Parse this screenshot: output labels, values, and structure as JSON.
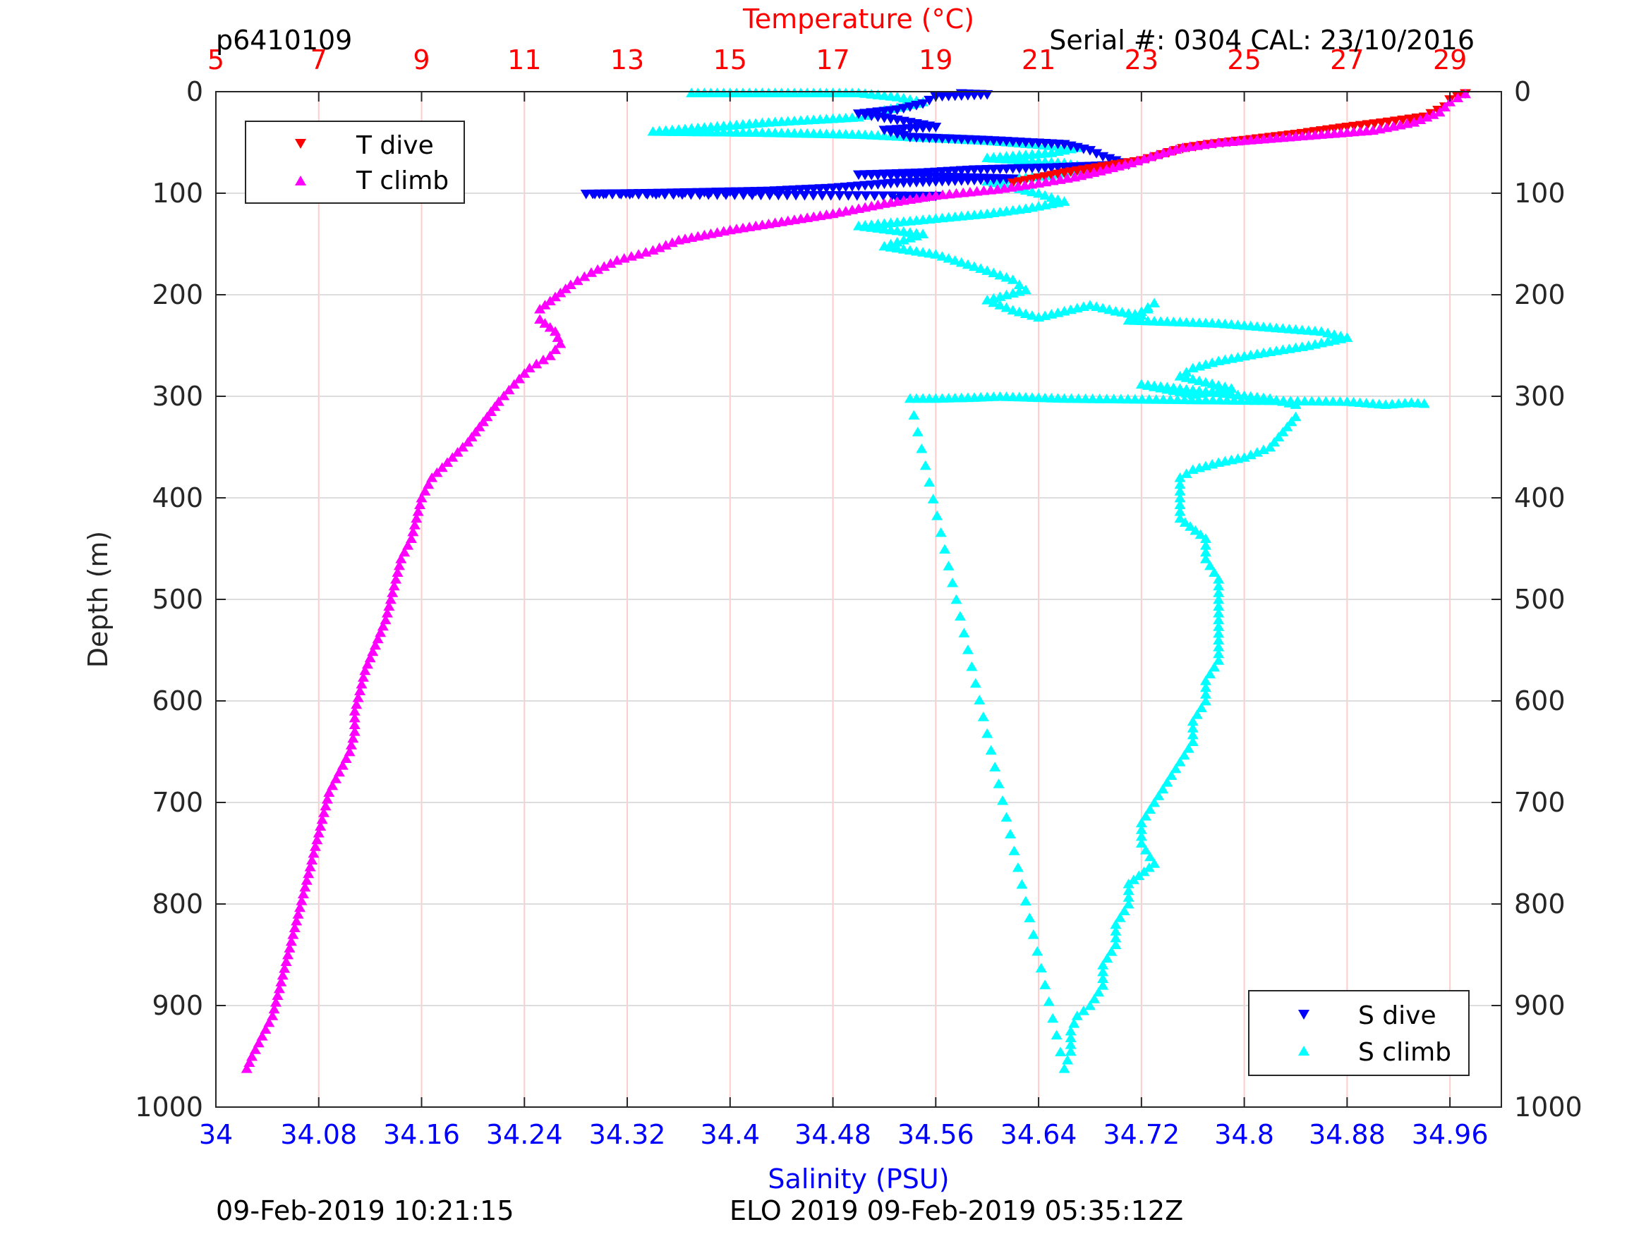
{
  "header": {
    "profile_id": "p6410109",
    "serial_info": "Serial #: 0304  CAL: 23/10/2016"
  },
  "footer": {
    "left_timestamp": "09-Feb-2019 10:21:15",
    "right_info": "ELO 2019 09-Feb-2019 05:35:12Z"
  },
  "colors": {
    "t_dive": "#ff0000",
    "t_climb": "#ff00ff",
    "s_dive": "#0000ff",
    "s_climb": "#00ffff",
    "temperature_axis": "#ff0000",
    "salinity_axis": "#0000ff",
    "grid_temperature": "#ffcccc",
    "grid_depth": "#dddddd"
  },
  "chart_data": {
    "type": "scatter",
    "ylabel": "Depth (m)",
    "y_direction": "reversed",
    "ylim": [
      0,
      1000
    ],
    "yticks": [
      0,
      100,
      200,
      300,
      400,
      500,
      600,
      700,
      800,
      900,
      1000
    ],
    "x_top": {
      "label": "Temperature (°C)",
      "range": [
        5,
        30
      ],
      "ticks": [
        5,
        7,
        9,
        11,
        13,
        15,
        17,
        19,
        21,
        23,
        25,
        27,
        29
      ]
    },
    "x_bottom": {
      "label": "Salinity (PSU)",
      "range": [
        34,
        35
      ],
      "ticks": [
        "34",
        "34.08",
        "34.16",
        "34.24",
        "34.32",
        "34.4",
        "34.48",
        "34.56",
        "34.64",
        "34.72",
        "34.8",
        "34.88",
        "34.96"
      ]
    },
    "legends": [
      {
        "position": "top-left",
        "entries": [
          {
            "label": "T dive",
            "marker": "triangle-down",
            "series": "t_dive"
          },
          {
            "label": "T climb",
            "marker": "triangle-up",
            "series": "t_climb"
          }
        ]
      },
      {
        "position": "bottom-right",
        "entries": [
          {
            "label": "S dive",
            "marker": "triangle-down",
            "series": "s_dive"
          },
          {
            "label": "S climb",
            "marker": "triangle-up",
            "series": "s_climb"
          }
        ]
      }
    ],
    "series": [
      {
        "name": "T dive",
        "axis": "temperature",
        "marker": "triangle-down",
        "points": [
          [
            29.3,
            2
          ],
          [
            29.0,
            8
          ],
          [
            28.9,
            15
          ],
          [
            28.5,
            25
          ],
          [
            27.8,
            30
          ],
          [
            27.0,
            35
          ],
          [
            26.0,
            42
          ],
          [
            25.0,
            48
          ],
          [
            24.3,
            52
          ],
          [
            23.8,
            56
          ],
          [
            23.4,
            62
          ],
          [
            23.0,
            68
          ],
          [
            22.5,
            72
          ],
          [
            22.0,
            76
          ],
          [
            21.5,
            80
          ],
          [
            21.0,
            85
          ],
          [
            20.5,
            90
          ]
        ]
      },
      {
        "name": "T climb",
        "axis": "temperature",
        "marker": "triangle-up",
        "points": [
          [
            29.3,
            2
          ],
          [
            29.0,
            10
          ],
          [
            28.8,
            20
          ],
          [
            28.3,
            30
          ],
          [
            27.5,
            38
          ],
          [
            26.5,
            42
          ],
          [
            25.5,
            46
          ],
          [
            24.5,
            50
          ],
          [
            23.8,
            55
          ],
          [
            23.3,
            62
          ],
          [
            22.8,
            70
          ],
          [
            22.2,
            78
          ],
          [
            21.7,
            84
          ],
          [
            21.0,
            90
          ],
          [
            20.2,
            96
          ],
          [
            19.0,
            102
          ],
          [
            18.0,
            110
          ],
          [
            17.0,
            120
          ],
          [
            16.0,
            128
          ],
          [
            15.0,
            136
          ],
          [
            14.0,
            146
          ],
          [
            13.5,
            156
          ],
          [
            12.8,
            166
          ],
          [
            12.3,
            178
          ],
          [
            11.9,
            190
          ],
          [
            11.6,
            202
          ],
          [
            11.3,
            214
          ],
          [
            11.3,
            224
          ],
          [
            11.6,
            236
          ],
          [
            11.7,
            248
          ],
          [
            11.5,
            260
          ],
          [
            11.1,
            272
          ],
          [
            10.8,
            288
          ],
          [
            10.5,
            305
          ],
          [
            10.2,
            325
          ],
          [
            9.9,
            345
          ],
          [
            9.5,
            365
          ],
          [
            9.2,
            380
          ],
          [
            9.0,
            400
          ],
          [
            8.9,
            420
          ],
          [
            8.8,
            440
          ],
          [
            8.6,
            460
          ],
          [
            8.5,
            480
          ],
          [
            8.4,
            500
          ],
          [
            8.3,
            520
          ],
          [
            8.1,
            545
          ],
          [
            7.9,
            570
          ],
          [
            7.8,
            590
          ],
          [
            7.7,
            610
          ],
          [
            7.7,
            630
          ],
          [
            7.6,
            650
          ],
          [
            7.4,
            670
          ],
          [
            7.2,
            690
          ],
          [
            7.1,
            710
          ],
          [
            7.0,
            730
          ],
          [
            6.9,
            750
          ],
          [
            6.8,
            770
          ],
          [
            6.7,
            790
          ],
          [
            6.6,
            810
          ],
          [
            6.5,
            830
          ],
          [
            6.4,
            850
          ],
          [
            6.3,
            870
          ],
          [
            6.2,
            890
          ],
          [
            6.1,
            910
          ],
          [
            5.9,
            930
          ],
          [
            5.7,
            950
          ],
          [
            5.6,
            962
          ]
        ]
      },
      {
        "name": "S dive",
        "axis": "salinity",
        "marker": "triangle-down",
        "points": [
          [
            34.58,
            2
          ],
          [
            34.6,
            3
          ],
          [
            34.56,
            5
          ],
          [
            34.55,
            12
          ],
          [
            34.53,
            18
          ],
          [
            34.5,
            22
          ],
          [
            34.53,
            28
          ],
          [
            34.56,
            35
          ],
          [
            34.52,
            38
          ],
          [
            34.54,
            45
          ],
          [
            34.6,
            48
          ],
          [
            34.66,
            52
          ],
          [
            34.68,
            58
          ],
          [
            34.69,
            64
          ],
          [
            34.7,
            68
          ],
          [
            34.71,
            72
          ],
          [
            34.65,
            75
          ],
          [
            34.59,
            77
          ],
          [
            34.55,
            80
          ],
          [
            34.5,
            82
          ],
          [
            34.62,
            86
          ],
          [
            34.53,
            90
          ],
          [
            34.48,
            95
          ],
          [
            34.43,
            98
          ],
          [
            34.35,
            100
          ],
          [
            34.288,
            101
          ],
          [
            34.56,
            103
          ],
          [
            34.53,
            106
          ]
        ]
      },
      {
        "name": "S climb",
        "axis": "salinity",
        "marker": "triangle-up",
        "points": [
          [
            34.37,
            1
          ],
          [
            34.46,
            1
          ],
          [
            34.5,
            1
          ],
          [
            34.53,
            5
          ],
          [
            34.55,
            10
          ],
          [
            34.52,
            18
          ],
          [
            34.5,
            25
          ],
          [
            34.43,
            30
          ],
          [
            34.35,
            38
          ],
          [
            34.34,
            39
          ],
          [
            34.42,
            40
          ],
          [
            34.5,
            42
          ],
          [
            34.6,
            48
          ],
          [
            34.67,
            55
          ],
          [
            34.65,
            60
          ],
          [
            34.6,
            65
          ],
          [
            34.66,
            70
          ],
          [
            34.68,
            75
          ],
          [
            34.65,
            82
          ],
          [
            34.6,
            88
          ],
          [
            34.62,
            94
          ],
          [
            34.64,
            100
          ],
          [
            34.66,
            108
          ],
          [
            34.63,
            115
          ],
          [
            34.6,
            120
          ],
          [
            34.55,
            126
          ],
          [
            34.5,
            132
          ],
          [
            34.55,
            140
          ],
          [
            34.52,
            152
          ],
          [
            34.56,
            160
          ],
          [
            34.58,
            168
          ],
          [
            34.6,
            176
          ],
          [
            34.62,
            185
          ],
          [
            34.63,
            195
          ],
          [
            34.6,
            205
          ],
          [
            34.62,
            215
          ],
          [
            34.64,
            222
          ],
          [
            34.68,
            210
          ],
          [
            34.7,
            216
          ],
          [
            34.72,
            220
          ],
          [
            34.73,
            208
          ],
          [
            34.71,
            225
          ],
          [
            34.78,
            228
          ],
          [
            34.82,
            232
          ],
          [
            34.86,
            236
          ],
          [
            34.88,
            242
          ],
          [
            34.85,
            250
          ],
          [
            34.81,
            258
          ],
          [
            34.78,
            265
          ],
          [
            34.76,
            272
          ],
          [
            34.75,
            280
          ],
          [
            34.77,
            286
          ],
          [
            34.79,
            292
          ],
          [
            34.76,
            298
          ],
          [
            34.72,
            288
          ],
          [
            34.82,
            302
          ],
          [
            34.84,
            308
          ],
          [
            34.84,
            320
          ],
          [
            34.83,
            335
          ],
          [
            34.82,
            350
          ],
          [
            34.8,
            360
          ],
          [
            34.78,
            365
          ],
          [
            34.76,
            372
          ],
          [
            34.75,
            380
          ],
          [
            34.75,
            400
          ],
          [
            34.75,
            420
          ],
          [
            34.77,
            440
          ],
          [
            34.77,
            460
          ],
          [
            34.78,
            480
          ],
          [
            34.78,
            500
          ],
          [
            34.78,
            520
          ],
          [
            34.78,
            540
          ],
          [
            34.78,
            560
          ],
          [
            34.77,
            580
          ],
          [
            34.77,
            600
          ],
          [
            34.76,
            620
          ],
          [
            34.76,
            640
          ],
          [
            34.75,
            660
          ],
          [
            34.74,
            680
          ],
          [
            34.73,
            700
          ],
          [
            34.72,
            720
          ],
          [
            34.72,
            740
          ],
          [
            34.73,
            760
          ],
          [
            34.71,
            780
          ],
          [
            34.71,
            800
          ],
          [
            34.7,
            820
          ],
          [
            34.7,
            840
          ],
          [
            34.69,
            860
          ],
          [
            34.69,
            880
          ],
          [
            34.68,
            900
          ],
          [
            34.67,
            910
          ],
          [
            34.665,
            925
          ],
          [
            34.665,
            945
          ],
          [
            34.66,
            962
          ],
          [
            34.54,
            302
          ],
          [
            34.56,
            302
          ],
          [
            34.59,
            301
          ],
          [
            34.61,
            300
          ],
          [
            34.66,
            302
          ],
          [
            34.88,
            305
          ],
          [
            34.91,
            308
          ],
          [
            34.93,
            306
          ],
          [
            34.94,
            307
          ]
        ]
      }
    ]
  }
}
